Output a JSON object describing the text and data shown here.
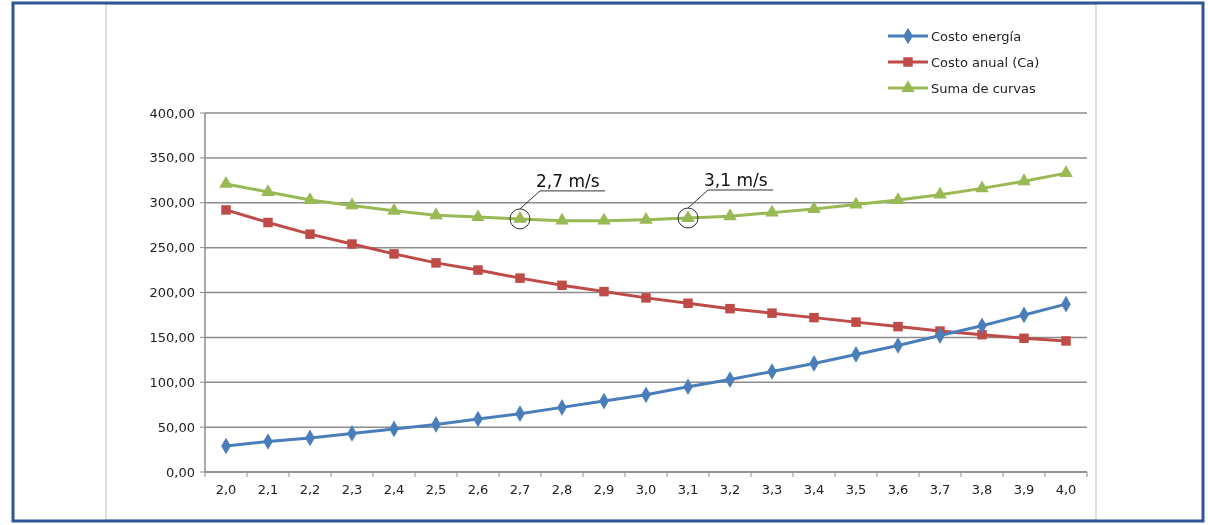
{
  "chart_data": {
    "type": "line",
    "categories": [
      "2,0",
      "2,1",
      "2,2",
      "2,3",
      "2,4",
      "2,5",
      "2,6",
      "2,7",
      "2,8",
      "2,9",
      "3,0",
      "3,1",
      "3,2",
      "3,3",
      "3,4",
      "3,5",
      "3,6",
      "3,7",
      "3,8",
      "3,9",
      "4,0"
    ],
    "series": [
      {
        "name": "Costo energía",
        "color": "#4a7ebb",
        "marker": "diamond",
        "values": [
          29,
          34,
          38,
          43,
          48,
          53,
          59,
          65,
          72,
          79,
          86,
          95,
          103,
          112,
          121,
          131,
          141,
          152,
          163,
          175,
          187
        ]
      },
      {
        "name": "Costo anual (Ca)",
        "color": "#be4b48",
        "marker": "square",
        "values": [
          292,
          278,
          265,
          254,
          243,
          233,
          225,
          216,
          208,
          201,
          194,
          188,
          182,
          177,
          172,
          167,
          162,
          157,
          153,
          149,
          146
        ]
      },
      {
        "name": "Suma de curvas",
        "color": "#98b954",
        "marker": "triangle",
        "values": [
          321,
          312,
          303,
          297,
          291,
          286,
          284,
          282,
          280,
          280,
          281,
          283,
          285,
          289,
          293,
          298,
          303,
          309,
          316,
          324,
          333
        ]
      }
    ],
    "ylim": [
      0,
      400
    ],
    "yticks": [
      {
        "value": 0,
        "label": "0,00"
      },
      {
        "value": 50,
        "label": "50,00"
      },
      {
        "value": 100,
        "label": "100,00"
      },
      {
        "value": 150,
        "label": "150,00"
      },
      {
        "value": 200,
        "label": "200,00"
      },
      {
        "value": 250,
        "label": "250,00"
      },
      {
        "value": 300,
        "label": "300,00"
      },
      {
        "value": 350,
        "label": "350,00"
      },
      {
        "value": 400,
        "label": "400,00"
      }
    ],
    "grid": "y",
    "legend": "top right",
    "annotations": [
      {
        "text": "2,7 m/s",
        "x": "2,7",
        "y": 282
      },
      {
        "text": "3,1 m/s",
        "x": "3,1",
        "y": 283
      }
    ]
  }
}
